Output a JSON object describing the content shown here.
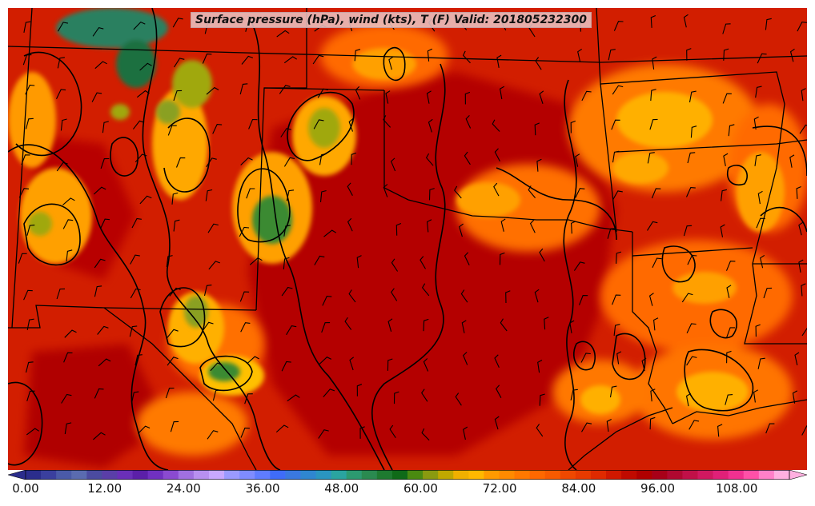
{
  "title": "Surface pressure (hPa), wind (kts), T (F) Valid: 201805232300",
  "colorbar": {
    "min": 0,
    "max": 116,
    "step": 2,
    "tick_labels": [
      "0.00",
      "12.00",
      "24.00",
      "36.00",
      "48.00",
      "60.00",
      "72.00",
      "84.00",
      "96.00",
      "108.00"
    ],
    "tick_values": [
      0,
      12,
      24,
      36,
      48,
      60,
      72,
      84,
      96,
      108
    ],
    "colors": [
      "#2b2d8c",
      "#3a3f9e",
      "#4a5aa8",
      "#5a6bb0",
      "#4b4ba0",
      "#5a3ea8",
      "#6a2fb8",
      "#5b1fa8",
      "#7030c0",
      "#8a4ad0",
      "#a070e0",
      "#b890f0",
      "#c8a8ff",
      "#9a9aff",
      "#7f8cff",
      "#5f7cff",
      "#3f6cf8",
      "#3a78e0",
      "#2f86d0",
      "#2a95c0",
      "#2aa4a0",
      "#2c9a70",
      "#2a8a50",
      "#1e7a30",
      "#0f6a18",
      "#4a8a10",
      "#8a9a10",
      "#c0a800",
      "#f0b000",
      "#ffb800",
      "#ff9a00",
      "#ff8a00",
      "#ff7800",
      "#ff6800",
      "#f85a00",
      "#f04800",
      "#e83a00",
      "#e02a00",
      "#d01800",
      "#c00a00",
      "#b00000",
      "#a80018",
      "#b00830",
      "#c01048",
      "#d01860",
      "#e02078",
      "#f03090",
      "#ff50a8",
      "#ff80c8",
      "#ffb0e0"
    ]
  },
  "map_colors": {
    "base": "#d21e00",
    "warm_core": "#b80000",
    "orange": "#ff6a00",
    "light_orange": "#ffa000",
    "yellow": "#ffc800",
    "olive": "#a0a810",
    "green": "#2a8a50",
    "dark_green": "#0f6a18",
    "teal": "#2a8060"
  }
}
